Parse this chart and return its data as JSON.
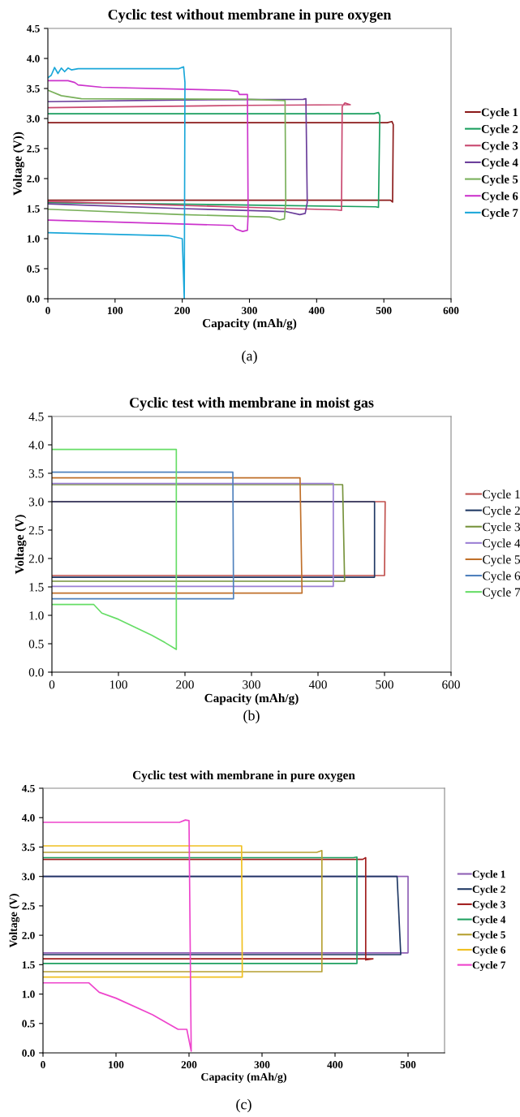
{
  "chart_data": [
    {
      "type": "line",
      "title": "Cyclic test without membrane in pure oxygen",
      "xlabel": "Capacity (mAh/g)",
      "ylabel": "Voltage (V))",
      "annotations": [
        "(a)"
      ],
      "xlim": [
        0,
        600
      ],
      "xticks": [
        0,
        100,
        200,
        300,
        400,
        500,
        600
      ],
      "ylim": [
        0,
        4.5
      ],
      "yticks": [
        {
          "value": 0,
          "label": "0.0"
        },
        {
          "value": 0.5,
          "label": "0.5"
        },
        {
          "value": 1,
          "label": "1.0"
        },
        {
          "value": 1.5,
          "label": "1.5"
        },
        {
          "value": 2,
          "label": "2.0"
        },
        {
          "value": 2.5,
          "label": "2.5"
        },
        {
          "value": 3,
          "label": "3.0"
        },
        {
          "value": 3.5,
          "label": "3.5"
        },
        {
          "value": 4,
          "label": "4.0"
        },
        {
          "value": 4.5,
          "label": "4.5"
        }
      ],
      "grid": false,
      "legend": "right",
      "marker": "none",
      "line_style": "solid",
      "series": [
        {
          "name": "Cycle 1",
          "color": "#8b1a1a",
          "x": [
            0,
            300,
            510,
            513,
            514,
            512,
            505,
            0
          ],
          "values": [
            1.64,
            1.64,
            1.64,
            1.61,
            2.9,
            2.95,
            2.93,
            2.93
          ]
        },
        {
          "name": "Cycle 2",
          "color": "#1a9f5f",
          "x": [
            0,
            300,
            488,
            492,
            494,
            492,
            485,
            0
          ],
          "values": [
            1.6,
            1.56,
            1.53,
            1.52,
            3.05,
            3.1,
            3.08,
            3.08
          ]
        },
        {
          "name": "Cycle 3",
          "color": "#c8466e",
          "x": [
            0,
            300,
            430,
            437,
            438,
            442,
            450,
            300,
            0
          ],
          "values": [
            1.62,
            1.52,
            1.48,
            1.47,
            3.2,
            3.26,
            3.23,
            3.22,
            3.18
          ]
        },
        {
          "name": "Cycle 4",
          "color": "#6a3d9a",
          "x": [
            0,
            200,
            355,
            375,
            383,
            386,
            384,
            380,
            200,
            0
          ],
          "values": [
            1.58,
            1.5,
            1.45,
            1.4,
            1.42,
            1.6,
            3.33,
            3.32,
            3.31,
            3.28
          ]
        },
        {
          "name": "Cycle 5",
          "color": "#79b05a",
          "x": [
            0,
            200,
            330,
            345,
            352,
            354,
            353,
            300,
            50,
            20,
            0
          ],
          "values": [
            1.49,
            1.4,
            1.36,
            1.31,
            1.33,
            1.6,
            3.3,
            3.32,
            3.33,
            3.38,
            3.47
          ]
        },
        {
          "name": "Cycle 6",
          "color": "#cc33cc",
          "x": [
            0,
            275,
            280,
            290,
            297,
            298,
            297,
            285,
            283,
            270,
            80,
            45,
            40,
            30,
            0
          ],
          "values": [
            1.31,
            1.22,
            1.16,
            1.12,
            1.14,
            1.4,
            3.4,
            3.4,
            3.45,
            3.47,
            3.52,
            3.56,
            3.6,
            3.63,
            3.63
          ]
        },
        {
          "name": "Cycle 7",
          "color": "#1aa7d9",
          "x": [
            0,
            180,
            200,
            203,
            204,
            202,
            195,
            45,
            35,
            30,
            25,
            20,
            15,
            10,
            5,
            0
          ],
          "values": [
            1.1,
            1.05,
            1.0,
            0.0,
            3.6,
            3.86,
            3.83,
            3.83,
            3.81,
            3.84,
            3.78,
            3.84,
            3.75,
            3.85,
            3.72,
            3.68
          ]
        }
      ]
    },
    {
      "type": "line",
      "title": "Cyclic test with membrane in moist gas",
      "xlabel": "Capacity (mAh/g)",
      "ylabel": "Voltage (V)",
      "annotations": [
        "(b)"
      ],
      "xlim": [
        0,
        600
      ],
      "xticks": [
        0,
        100,
        200,
        300,
        400,
        500,
        600
      ],
      "ylim": [
        0,
        4.5
      ],
      "yticks": [
        {
          "value": 0,
          "label": "0.0"
        },
        {
          "value": 0.5,
          "label": "0.5"
        },
        {
          "value": 1,
          "label": "1.0"
        },
        {
          "value": 1.5,
          "label": "1.5"
        },
        {
          "value": 2,
          "label": "2.0"
        },
        {
          "value": 2.5,
          "label": "2.5"
        },
        {
          "value": 3,
          "label": "3.0"
        },
        {
          "value": 3.5,
          "label": "3.5"
        },
        {
          "value": 4,
          "label": "4.0"
        },
        {
          "value": 4.5,
          "label": "4.5"
        }
      ],
      "grid": false,
      "legend": "right",
      "marker": "none",
      "line_style": "solid",
      "series": [
        {
          "name": "Cycle 1",
          "color": "#c0504d",
          "x": [
            0,
            500,
            501,
            0
          ],
          "values": [
            1.7,
            1.7,
            3.0,
            3.0
          ]
        },
        {
          "name": "Cycle 2",
          "color": "#1f3864",
          "x": [
            0,
            485,
            485,
            0
          ],
          "values": [
            1.67,
            1.67,
            3.0,
            3.0
          ]
        },
        {
          "name": "Cycle 3",
          "color": "#77933c",
          "x": [
            0,
            440,
            437,
            0
          ],
          "values": [
            1.6,
            1.6,
            3.3,
            3.3
          ]
        },
        {
          "name": "Cycle 4",
          "color": "#9b7fd4",
          "x": [
            0,
            423,
            423,
            0
          ],
          "values": [
            1.51,
            1.51,
            3.32,
            3.32
          ]
        },
        {
          "name": "Cycle 5",
          "color": "#c0702a",
          "x": [
            0,
            376,
            373,
            0
          ],
          "values": [
            1.39,
            1.39,
            3.42,
            3.42
          ]
        },
        {
          "name": "Cycle 6",
          "color": "#4f81bd",
          "x": [
            0,
            273,
            272,
            0
          ],
          "values": [
            1.29,
            1.29,
            3.52,
            3.52
          ]
        },
        {
          "name": "Cycle 7",
          "color": "#66dd66",
          "x": [
            0,
            63,
            75,
            100,
            150,
            170,
            187,
            187,
            0
          ],
          "values": [
            1.19,
            1.19,
            1.04,
            0.93,
            0.65,
            0.52,
            0.4,
            3.92,
            3.92
          ]
        }
      ]
    },
    {
      "type": "line",
      "title": "Cyclic test with membrane in pure oxygen",
      "xlabel": "Capacity (mAh/g)",
      "ylabel": "Voltage (V)",
      "annotations": [
        "(c)"
      ],
      "xlim": [
        0,
        550
      ],
      "xticks": [
        0,
        100,
        200,
        300,
        400,
        500
      ],
      "ylim": [
        0,
        4.5
      ],
      "yticks": [
        {
          "value": 0,
          "label": "0.0"
        },
        {
          "value": 0.5,
          "label": "0.5"
        },
        {
          "value": 1,
          "label": "1.0"
        },
        {
          "value": 1.5,
          "label": "1.5"
        },
        {
          "value": 2,
          "label": "2.0"
        },
        {
          "value": 2.5,
          "label": "2.5"
        },
        {
          "value": 3,
          "label": "3.0"
        },
        {
          "value": 3.5,
          "label": "3.5"
        },
        {
          "value": 4,
          "label": "4.0"
        },
        {
          "value": 4.5,
          "label": "4.5"
        }
      ],
      "grid": false,
      "legend": "right",
      "marker": "none",
      "line_style": "solid",
      "series": [
        {
          "name": "Cycle 1",
          "color": "#8e5fb5",
          "x": [
            0,
            500,
            500,
            0
          ],
          "values": [
            1.7,
            1.7,
            3.0,
            3.0
          ]
        },
        {
          "name": "Cycle 2",
          "color": "#1f3864",
          "x": [
            0,
            490,
            485,
            0
          ],
          "values": [
            1.67,
            1.67,
            3.0,
            3.0
          ]
        },
        {
          "name": "Cycle 3",
          "color": "#a01c1c",
          "x": [
            0,
            452,
            442,
            442,
            438,
            0
          ],
          "values": [
            1.6,
            1.6,
            1.58,
            3.32,
            3.29,
            3.29
          ]
        },
        {
          "name": "Cycle 4",
          "color": "#1fa060",
          "x": [
            0,
            430,
            430,
            425,
            0
          ],
          "values": [
            1.52,
            1.52,
            3.33,
            3.32,
            3.32
          ]
        },
        {
          "name": "Cycle 5",
          "color": "#b5a030",
          "x": [
            0,
            382,
            382,
            375,
            0
          ],
          "values": [
            1.38,
            1.38,
            3.44,
            3.41,
            3.41
          ]
        },
        {
          "name": "Cycle 6",
          "color": "#f0c020",
          "x": [
            0,
            273,
            272,
            0
          ],
          "values": [
            1.29,
            1.29,
            3.52,
            3.52
          ]
        },
        {
          "name": "Cycle 7",
          "color": "#ee44cc",
          "x": [
            0,
            63,
            77,
            100,
            150,
            185,
            197,
            203,
            200,
            195,
            187,
            0
          ],
          "values": [
            1.19,
            1.19,
            1.03,
            0.93,
            0.65,
            0.4,
            0.4,
            0.03,
            3.95,
            3.96,
            3.92,
            3.92
          ]
        }
      ]
    }
  ]
}
